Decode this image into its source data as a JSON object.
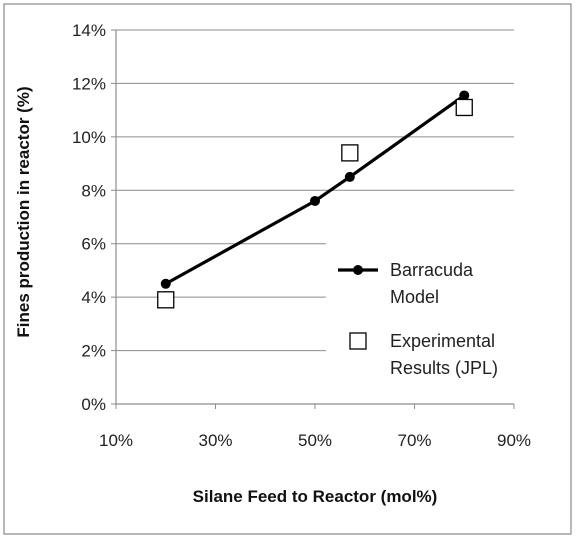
{
  "chart_data": {
    "type": "line",
    "title": "",
    "xlabel": "Silane Feed to Reactor (mol%)",
    "ylabel": "Fines production in reactor (%)",
    "xlim": [
      10,
      90
    ],
    "ylim": [
      0,
      14
    ],
    "x_ticks": [
      10,
      30,
      50,
      70,
      90
    ],
    "x_tick_labels": [
      "10%",
      "30%",
      "50%",
      "70%",
      "90%"
    ],
    "y_ticks": [
      0,
      2,
      4,
      6,
      8,
      10,
      12,
      14
    ],
    "y_tick_labels": [
      "0%",
      "2%",
      "4%",
      "6%",
      "8%",
      "10%",
      "12%",
      "14%"
    ],
    "grid": "horizontal",
    "legend_position": "right",
    "series": [
      {
        "name": [
          "Barracuda",
          "Model"
        ],
        "kind": "line-markers",
        "color": "#000000",
        "x": [
          20,
          50,
          57,
          80
        ],
        "y": [
          4.5,
          7.6,
          8.5,
          11.55
        ]
      },
      {
        "name": [
          "Experimental",
          "Results (JPL)"
        ],
        "kind": "open-square-markers",
        "color": "#000000",
        "x": [
          20,
          57,
          80
        ],
        "y": [
          3.9,
          9.4,
          11.1
        ]
      }
    ]
  }
}
